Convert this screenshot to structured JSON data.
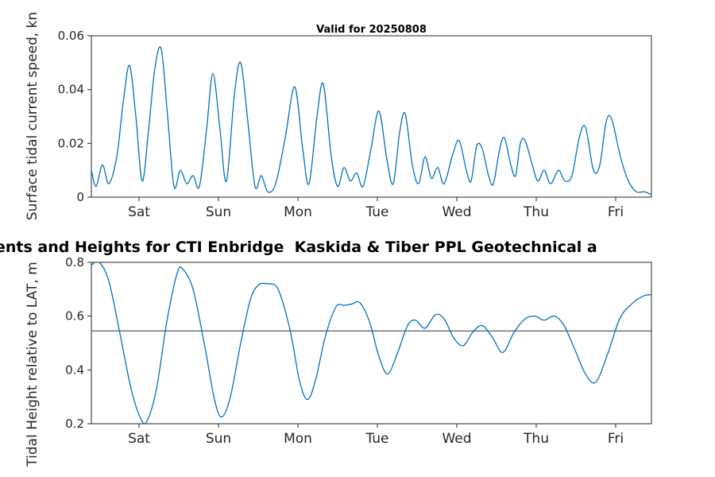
{
  "figure_title": "ents and Heights for CTI Enbridge  Kaskida & Tiber PPL Geotechnical a",
  "colors": {
    "series": "#0072BD",
    "axis": "#262626",
    "mean_line": "#333333"
  },
  "chart_data": [
    {
      "type": "line",
      "title": "Valid for 20250808",
      "ylabel": "Surface tidal current speed, kn",
      "xlabel": "",
      "grid": false,
      "xlim": [
        0,
        7.05
      ],
      "ylim": [
        0,
        0.06
      ],
      "xticks": {
        "values": [
          0.6,
          1.6,
          2.6,
          3.6,
          4.6,
          5.6,
          6.6
        ],
        "labels": [
          "Sat",
          "Sun",
          "Mon",
          "Tue",
          "Wed",
          "Thu",
          "Fri"
        ]
      },
      "yticks": {
        "values": [
          0,
          0.02,
          0.04,
          0.06
        ],
        "labels": [
          "0",
          "0.02",
          "0.04",
          "0.06"
        ]
      },
      "x": [
        0.0,
        0.06,
        0.14,
        0.22,
        0.32,
        0.4,
        0.48,
        0.56,
        0.64,
        0.72,
        0.8,
        0.88,
        0.96,
        1.04,
        1.12,
        1.2,
        1.28,
        1.36,
        1.45,
        1.53,
        1.62,
        1.7,
        1.8,
        1.88,
        1.97,
        2.06,
        2.14,
        2.22,
        2.32,
        2.44,
        2.56,
        2.66,
        2.74,
        2.84,
        2.92,
        3.02,
        3.1,
        3.18,
        3.26,
        3.34,
        3.42,
        3.52,
        3.62,
        3.72,
        3.8,
        3.88,
        3.95,
        4.04,
        4.12,
        4.2,
        4.28,
        4.36,
        4.44,
        4.55,
        4.63,
        4.72,
        4.78,
        4.85,
        4.92,
        5.0,
        5.06,
        5.14,
        5.2,
        5.28,
        5.34,
        5.4,
        5.46,
        5.55,
        5.62,
        5.7,
        5.78,
        5.88,
        5.96,
        6.05,
        6.14,
        6.22,
        6.32,
        6.4,
        6.48,
        6.55,
        6.66,
        6.76,
        6.86,
        6.96,
        7.05
      ],
      "y": [
        0.01,
        0.004,
        0.012,
        0.005,
        0.015,
        0.035,
        0.049,
        0.03,
        0.006,
        0.025,
        0.048,
        0.055,
        0.03,
        0.004,
        0.01,
        0.005,
        0.008,
        0.004,
        0.025,
        0.046,
        0.025,
        0.006,
        0.038,
        0.05,
        0.028,
        0.004,
        0.008,
        0.002,
        0.005,
        0.022,
        0.041,
        0.018,
        0.005,
        0.03,
        0.042,
        0.015,
        0.004,
        0.011,
        0.006,
        0.009,
        0.004,
        0.018,
        0.032,
        0.014,
        0.005,
        0.024,
        0.031,
        0.012,
        0.005,
        0.015,
        0.007,
        0.011,
        0.005,
        0.016,
        0.021,
        0.01,
        0.006,
        0.019,
        0.018,
        0.008,
        0.005,
        0.018,
        0.022,
        0.012,
        0.008,
        0.02,
        0.021,
        0.012,
        0.006,
        0.01,
        0.005,
        0.01,
        0.006,
        0.008,
        0.022,
        0.026,
        0.01,
        0.012,
        0.028,
        0.029,
        0.015,
        0.006,
        0.002,
        0.002,
        0.001
      ]
    },
    {
      "type": "line",
      "title": "",
      "ylabel": "Tidal Height relative to LAT, m",
      "xlabel": "",
      "grid": false,
      "xlim": [
        0,
        7.05
      ],
      "ylim": [
        0.2,
        0.8
      ],
      "mean_line_y": 0.545,
      "xticks": {
        "values": [
          0.6,
          1.6,
          2.6,
          3.6,
          4.6,
          5.6,
          6.6
        ],
        "labels": [
          "Sat",
          "Sun",
          "Mon",
          "Tue",
          "Wed",
          "Thu",
          "Fri"
        ]
      },
      "yticks": {
        "values": [
          0.2,
          0.4,
          0.6,
          0.8
        ],
        "labels": [
          "0.2",
          "0.4",
          "0.6",
          "0.8"
        ]
      },
      "x": [
        0.0,
        0.1,
        0.22,
        0.35,
        0.5,
        0.62,
        0.7,
        0.82,
        0.95,
        1.08,
        1.15,
        1.28,
        1.42,
        1.55,
        1.64,
        1.75,
        1.88,
        2.0,
        2.1,
        2.22,
        2.35,
        2.5,
        2.62,
        2.72,
        2.82,
        2.95,
        3.08,
        3.18,
        3.28,
        3.38,
        3.5,
        3.62,
        3.73,
        3.85,
        3.98,
        4.08,
        4.2,
        4.33,
        4.44,
        4.56,
        4.68,
        4.8,
        4.92,
        5.05,
        5.18,
        5.32,
        5.46,
        5.58,
        5.7,
        5.83,
        5.95,
        6.08,
        6.22,
        6.35,
        6.5,
        6.65,
        6.8,
        6.95,
        7.05
      ],
      "y": [
        0.79,
        0.8,
        0.73,
        0.55,
        0.33,
        0.22,
        0.21,
        0.33,
        0.58,
        0.76,
        0.775,
        0.7,
        0.5,
        0.29,
        0.225,
        0.3,
        0.5,
        0.66,
        0.715,
        0.72,
        0.7,
        0.55,
        0.36,
        0.29,
        0.36,
        0.53,
        0.635,
        0.64,
        0.645,
        0.65,
        0.58,
        0.45,
        0.385,
        0.46,
        0.565,
        0.585,
        0.555,
        0.605,
        0.59,
        0.52,
        0.49,
        0.54,
        0.565,
        0.52,
        0.465,
        0.54,
        0.59,
        0.6,
        0.585,
        0.6,
        0.565,
        0.48,
        0.385,
        0.355,
        0.46,
        0.59,
        0.645,
        0.675,
        0.68
      ]
    }
  ]
}
